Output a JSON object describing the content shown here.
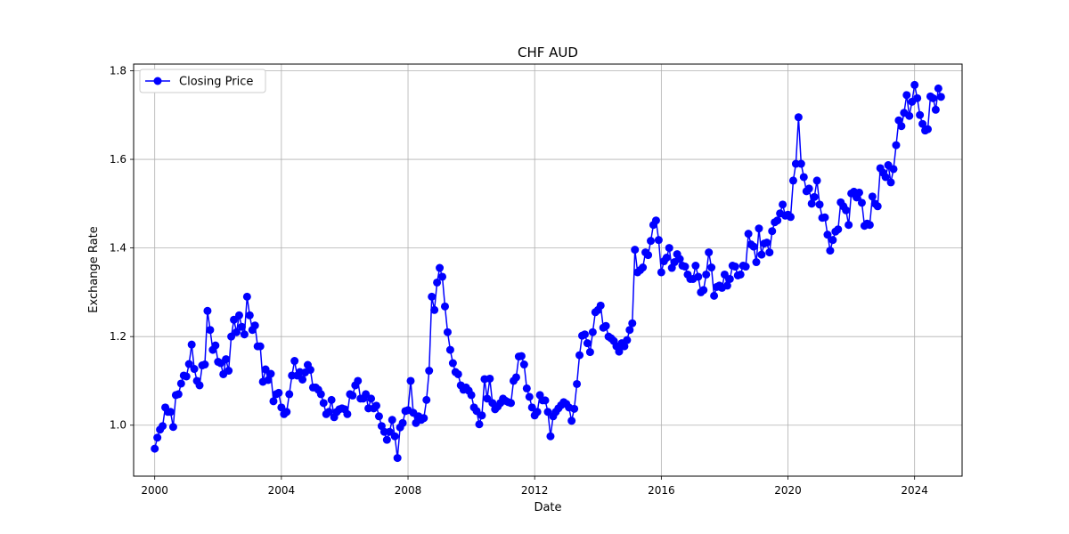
{
  "chart_data": {
    "type": "line",
    "title": "CHF AUD",
    "xlabel": "Date",
    "ylabel": "Exchange Rate",
    "x_axis_type": "date",
    "xlim": [
      "1999-05",
      "2025-07"
    ],
    "ylim": [
      0.885,
      1.815
    ],
    "x_ticks": [
      "2000",
      "2004",
      "2008",
      "2012",
      "2016",
      "2020",
      "2024"
    ],
    "y_ticks": [
      "1.0",
      "1.2",
      "1.4",
      "1.6",
      "1.8"
    ],
    "grid": true,
    "legend_position": "top-left",
    "series": [
      {
        "name": "Closing Price",
        "color": "#0000ff",
        "marker": "circle",
        "x": [
          "2000-01",
          "2000-02",
          "2000-03",
          "2000-04",
          "2000-05",
          "2000-06",
          "2000-07",
          "2000-08",
          "2000-09",
          "2000-10",
          "2000-11",
          "2000-12",
          "2001-01",
          "2001-02",
          "2001-03",
          "2001-04",
          "2001-05",
          "2001-06",
          "2001-07",
          "2001-08",
          "2001-09",
          "2001-10",
          "2001-11",
          "2001-12",
          "2002-01",
          "2002-02",
          "2002-03",
          "2002-04",
          "2002-05",
          "2002-06",
          "2002-07",
          "2002-08",
          "2002-09",
          "2002-10",
          "2002-11",
          "2002-12",
          "2003-01",
          "2003-02",
          "2003-03",
          "2003-04",
          "2003-05",
          "2003-06",
          "2003-07",
          "2003-08",
          "2003-09",
          "2003-10",
          "2003-11",
          "2003-12",
          "2004-01",
          "2004-02",
          "2004-03",
          "2004-04",
          "2004-05",
          "2004-06",
          "2004-07",
          "2004-08",
          "2004-09",
          "2004-10",
          "2004-11",
          "2004-12",
          "2005-01",
          "2005-02",
          "2005-03",
          "2005-04",
          "2005-05",
          "2005-06",
          "2005-07",
          "2005-08",
          "2005-09",
          "2005-10",
          "2005-11",
          "2005-12",
          "2006-01",
          "2006-02",
          "2006-03",
          "2006-04",
          "2006-05",
          "2006-06",
          "2006-07",
          "2006-08",
          "2006-09",
          "2006-10",
          "2006-11",
          "2006-12",
          "2007-01",
          "2007-02",
          "2007-03",
          "2007-04",
          "2007-05",
          "2007-06",
          "2007-07",
          "2007-08",
          "2007-09",
          "2007-10",
          "2007-11",
          "2007-12",
          "2008-01",
          "2008-02",
          "2008-03",
          "2008-04",
          "2008-05",
          "2008-06",
          "2008-07",
          "2008-08",
          "2008-09",
          "2008-10",
          "2008-11",
          "2008-12",
          "2009-01",
          "2009-02",
          "2009-03",
          "2009-04",
          "2009-05",
          "2009-06",
          "2009-07",
          "2009-08",
          "2009-09",
          "2009-10",
          "2009-11",
          "2009-12",
          "2010-01",
          "2010-02",
          "2010-03",
          "2010-04",
          "2010-05",
          "2010-06",
          "2010-07",
          "2010-08",
          "2010-09",
          "2010-10",
          "2010-11",
          "2010-12",
          "2011-01",
          "2011-02",
          "2011-03",
          "2011-04",
          "2011-05",
          "2011-06",
          "2011-07",
          "2011-08",
          "2011-09",
          "2011-10",
          "2011-11",
          "2011-12",
          "2012-01",
          "2012-02",
          "2012-03",
          "2012-04",
          "2012-05",
          "2012-06",
          "2012-07",
          "2012-08",
          "2012-09",
          "2012-10",
          "2012-11",
          "2012-12",
          "2013-01",
          "2013-02",
          "2013-03",
          "2013-04",
          "2013-05",
          "2013-06",
          "2013-07",
          "2013-08",
          "2013-09",
          "2013-10",
          "2013-11",
          "2013-12",
          "2014-01",
          "2014-02",
          "2014-03",
          "2014-04",
          "2014-05",
          "2014-06",
          "2014-07",
          "2014-08",
          "2014-09",
          "2014-10",
          "2014-11",
          "2014-12",
          "2015-01",
          "2015-02",
          "2015-03",
          "2015-04",
          "2015-05",
          "2015-06",
          "2015-07",
          "2015-08",
          "2015-09",
          "2015-10",
          "2015-11",
          "2015-12",
          "2016-01",
          "2016-02",
          "2016-03",
          "2016-04",
          "2016-05",
          "2016-06",
          "2016-07",
          "2016-08",
          "2016-09",
          "2016-10",
          "2016-11",
          "2016-12",
          "2017-01",
          "2017-02",
          "2017-03",
          "2017-04",
          "2017-05",
          "2017-06",
          "2017-07",
          "2017-08",
          "2017-09",
          "2017-10",
          "2017-11",
          "2017-12",
          "2018-01",
          "2018-02",
          "2018-03",
          "2018-04",
          "2018-05",
          "2018-06",
          "2018-07",
          "2018-08",
          "2018-09",
          "2018-10",
          "2018-11",
          "2018-12",
          "2019-01",
          "2019-02",
          "2019-03",
          "2019-04",
          "2019-05",
          "2019-06",
          "2019-07",
          "2019-08",
          "2019-09",
          "2019-10",
          "2019-11",
          "2019-12",
          "2020-01",
          "2020-02",
          "2020-03",
          "2020-04",
          "2020-05",
          "2020-06",
          "2020-07",
          "2020-08",
          "2020-09",
          "2020-10",
          "2020-11",
          "2020-12",
          "2021-01",
          "2021-02",
          "2021-03",
          "2021-04",
          "2021-05",
          "2021-06",
          "2021-07",
          "2021-08",
          "2021-09",
          "2021-10",
          "2021-11",
          "2021-12",
          "2022-01",
          "2022-02",
          "2022-03",
          "2022-04",
          "2022-05",
          "2022-06",
          "2022-07",
          "2022-08",
          "2022-09",
          "2022-10",
          "2022-11",
          "2022-12",
          "2023-01",
          "2023-02",
          "2023-03",
          "2023-04",
          "2023-05",
          "2023-06",
          "2023-07",
          "2023-08",
          "2023-09",
          "2023-10",
          "2023-11",
          "2023-12",
          "2024-01",
          "2024-02",
          "2024-03",
          "2024-04",
          "2024-05",
          "2024-06",
          "2024-07",
          "2024-08",
          "2024-09",
          "2024-10",
          "2024-11"
        ],
        "y": [
          0.947,
          0.972,
          0.99,
          0.998,
          1.04,
          1.03,
          1.03,
          0.996,
          1.068,
          1.07,
          1.094,
          1.112,
          1.11,
          1.138,
          1.182,
          1.127,
          1.1,
          1.09,
          1.135,
          1.137,
          1.258,
          1.215,
          1.17,
          1.18,
          1.143,
          1.14,
          1.115,
          1.149,
          1.123,
          1.2,
          1.238,
          1.21,
          1.248,
          1.222,
          1.205,
          1.29,
          1.248,
          1.215,
          1.225,
          1.178,
          1.178,
          1.098,
          1.126,
          1.102,
          1.116,
          1.054,
          1.07,
          1.073,
          1.04,
          1.025,
          1.03,
          1.07,
          1.112,
          1.145,
          1.112,
          1.12,
          1.103,
          1.119,
          1.136,
          1.125,
          1.085,
          1.085,
          1.08,
          1.07,
          1.05,
          1.025,
          1.03,
          1.057,
          1.018,
          1.03,
          1.036,
          1.038,
          1.036,
          1.025,
          1.07,
          1.067,
          1.09,
          1.1,
          1.06,
          1.06,
          1.07,
          1.038,
          1.06,
          1.038,
          1.044,
          1.02,
          0.998,
          0.985,
          0.967,
          0.985,
          1.012,
          0.975,
          0.926,
          0.995,
          1.005,
          1.032,
          1.034,
          1.1,
          1.028,
          1.005,
          1.02,
          1.012,
          1.016,
          1.057,
          1.123,
          1.29,
          1.26,
          1.322,
          1.355,
          1.335,
          1.268,
          1.21,
          1.17,
          1.14,
          1.12,
          1.115,
          1.09,
          1.08,
          1.085,
          1.078,
          1.068,
          1.04,
          1.032,
          1.002,
          1.022,
          1.104,
          1.06,
          1.105,
          1.05,
          1.036,
          1.042,
          1.05,
          1.06,
          1.055,
          1.052,
          1.05,
          1.1,
          1.108,
          1.155,
          1.156,
          1.137,
          1.083,
          1.064,
          1.04,
          1.022,
          1.03,
          1.068,
          1.056,
          1.056,
          1.03,
          0.975,
          1.02,
          1.03,
          1.038,
          1.045,
          1.052,
          1.048,
          1.04,
          1.01,
          1.037,
          1.093,
          1.158,
          1.202,
          1.205,
          1.185,
          1.165,
          1.21,
          1.255,
          1.26,
          1.27,
          1.22,
          1.224,
          1.2,
          1.196,
          1.19,
          1.178,
          1.166,
          1.185,
          1.178,
          1.192,
          1.215,
          1.23,
          1.396,
          1.345,
          1.35,
          1.356,
          1.39,
          1.384,
          1.416,
          1.452,
          1.462,
          1.418,
          1.345,
          1.37,
          1.378,
          1.4,
          1.355,
          1.368,
          1.386,
          1.375,
          1.36,
          1.358,
          1.34,
          1.33,
          1.33,
          1.36,
          1.335,
          1.3,
          1.305,
          1.34,
          1.39,
          1.356,
          1.292,
          1.312,
          1.315,
          1.31,
          1.34,
          1.315,
          1.33,
          1.36,
          1.358,
          1.338,
          1.34,
          1.36,
          1.358,
          1.432,
          1.408,
          1.403,
          1.368,
          1.444,
          1.385,
          1.41,
          1.412,
          1.39,
          1.438,
          1.458,
          1.462,
          1.478,
          1.498,
          1.473,
          1.475,
          1.47,
          1.552,
          1.59,
          1.695,
          1.59,
          1.56,
          1.528,
          1.534,
          1.5,
          1.515,
          1.552,
          1.498,
          1.468,
          1.469,
          1.43,
          1.394,
          1.418,
          1.437,
          1.442,
          1.503,
          1.494,
          1.485,
          1.452,
          1.523,
          1.527,
          1.514,
          1.525,
          1.502,
          1.45,
          1.455,
          1.452,
          1.516,
          1.5,
          1.494,
          1.58,
          1.57,
          1.56,
          1.587,
          1.548,
          1.578,
          1.632,
          1.688,
          1.675,
          1.705,
          1.745,
          1.698,
          1.73,
          1.768,
          1.738,
          1.7,
          1.68,
          1.665,
          1.668,
          1.742,
          1.738,
          1.712,
          1.76,
          1.741
        ]
      }
    ]
  }
}
